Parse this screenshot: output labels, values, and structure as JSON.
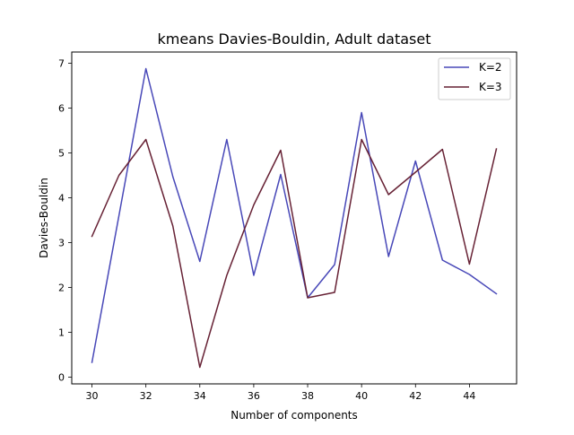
{
  "chart_data": {
    "type": "line",
    "title": "kmeans Davies-Bouldin, Adult dataset",
    "xlabel": "Number of components",
    "ylabel": "Davies-Bouldin",
    "x": [
      30,
      31,
      32,
      33,
      34,
      35,
      36,
      37,
      38,
      39,
      40,
      41,
      42,
      43,
      44,
      45
    ],
    "xlim": [
      29.25,
      45.75
    ],
    "ylim": [
      -0.15,
      7.25
    ],
    "xticks": [
      30,
      32,
      34,
      36,
      38,
      40,
      42,
      44
    ],
    "yticks": [
      0,
      1,
      2,
      3,
      4,
      5,
      6,
      7
    ],
    "grid": false,
    "legend_position": "upper right",
    "series": [
      {
        "name": "K=2",
        "color": "#4848b8",
        "values": [
          0.33,
          3.6,
          6.88,
          4.47,
          2.58,
          5.3,
          2.27,
          4.52,
          1.77,
          2.51,
          5.9,
          2.69,
          4.82,
          2.61,
          2.29,
          1.86
        ]
      },
      {
        "name": "K=3",
        "color": "#672235",
        "values": [
          3.14,
          4.5,
          5.3,
          3.37,
          0.22,
          2.27,
          3.84,
          5.06,
          1.77,
          1.89,
          5.3,
          4.07,
          4.57,
          5.08,
          2.52,
          5.09
        ]
      }
    ]
  }
}
